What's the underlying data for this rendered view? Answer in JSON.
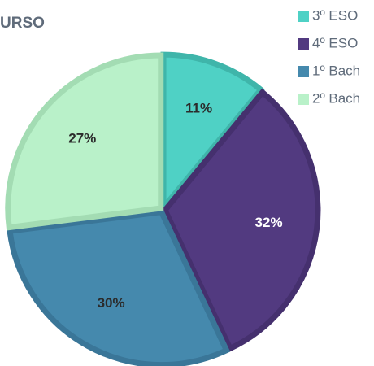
{
  "chart_data": {
    "type": "pie",
    "title": "URSO",
    "categories": [
      "3º ESO",
      "4º ESO",
      "1º Bach",
      "2º Bach"
    ],
    "values": [
      11,
      32,
      30,
      27
    ],
    "value_labels": [
      "11%",
      "32%",
      "30%",
      "27%"
    ],
    "colors": [
      "#4fd1c5",
      "#523a80",
      "#4589ad",
      "#b9f1c9"
    ],
    "edge_colors": [
      "#3fb5aa",
      "#45306e",
      "#3a7698",
      "#a3dcb3"
    ],
    "legend": "top-right"
  }
}
